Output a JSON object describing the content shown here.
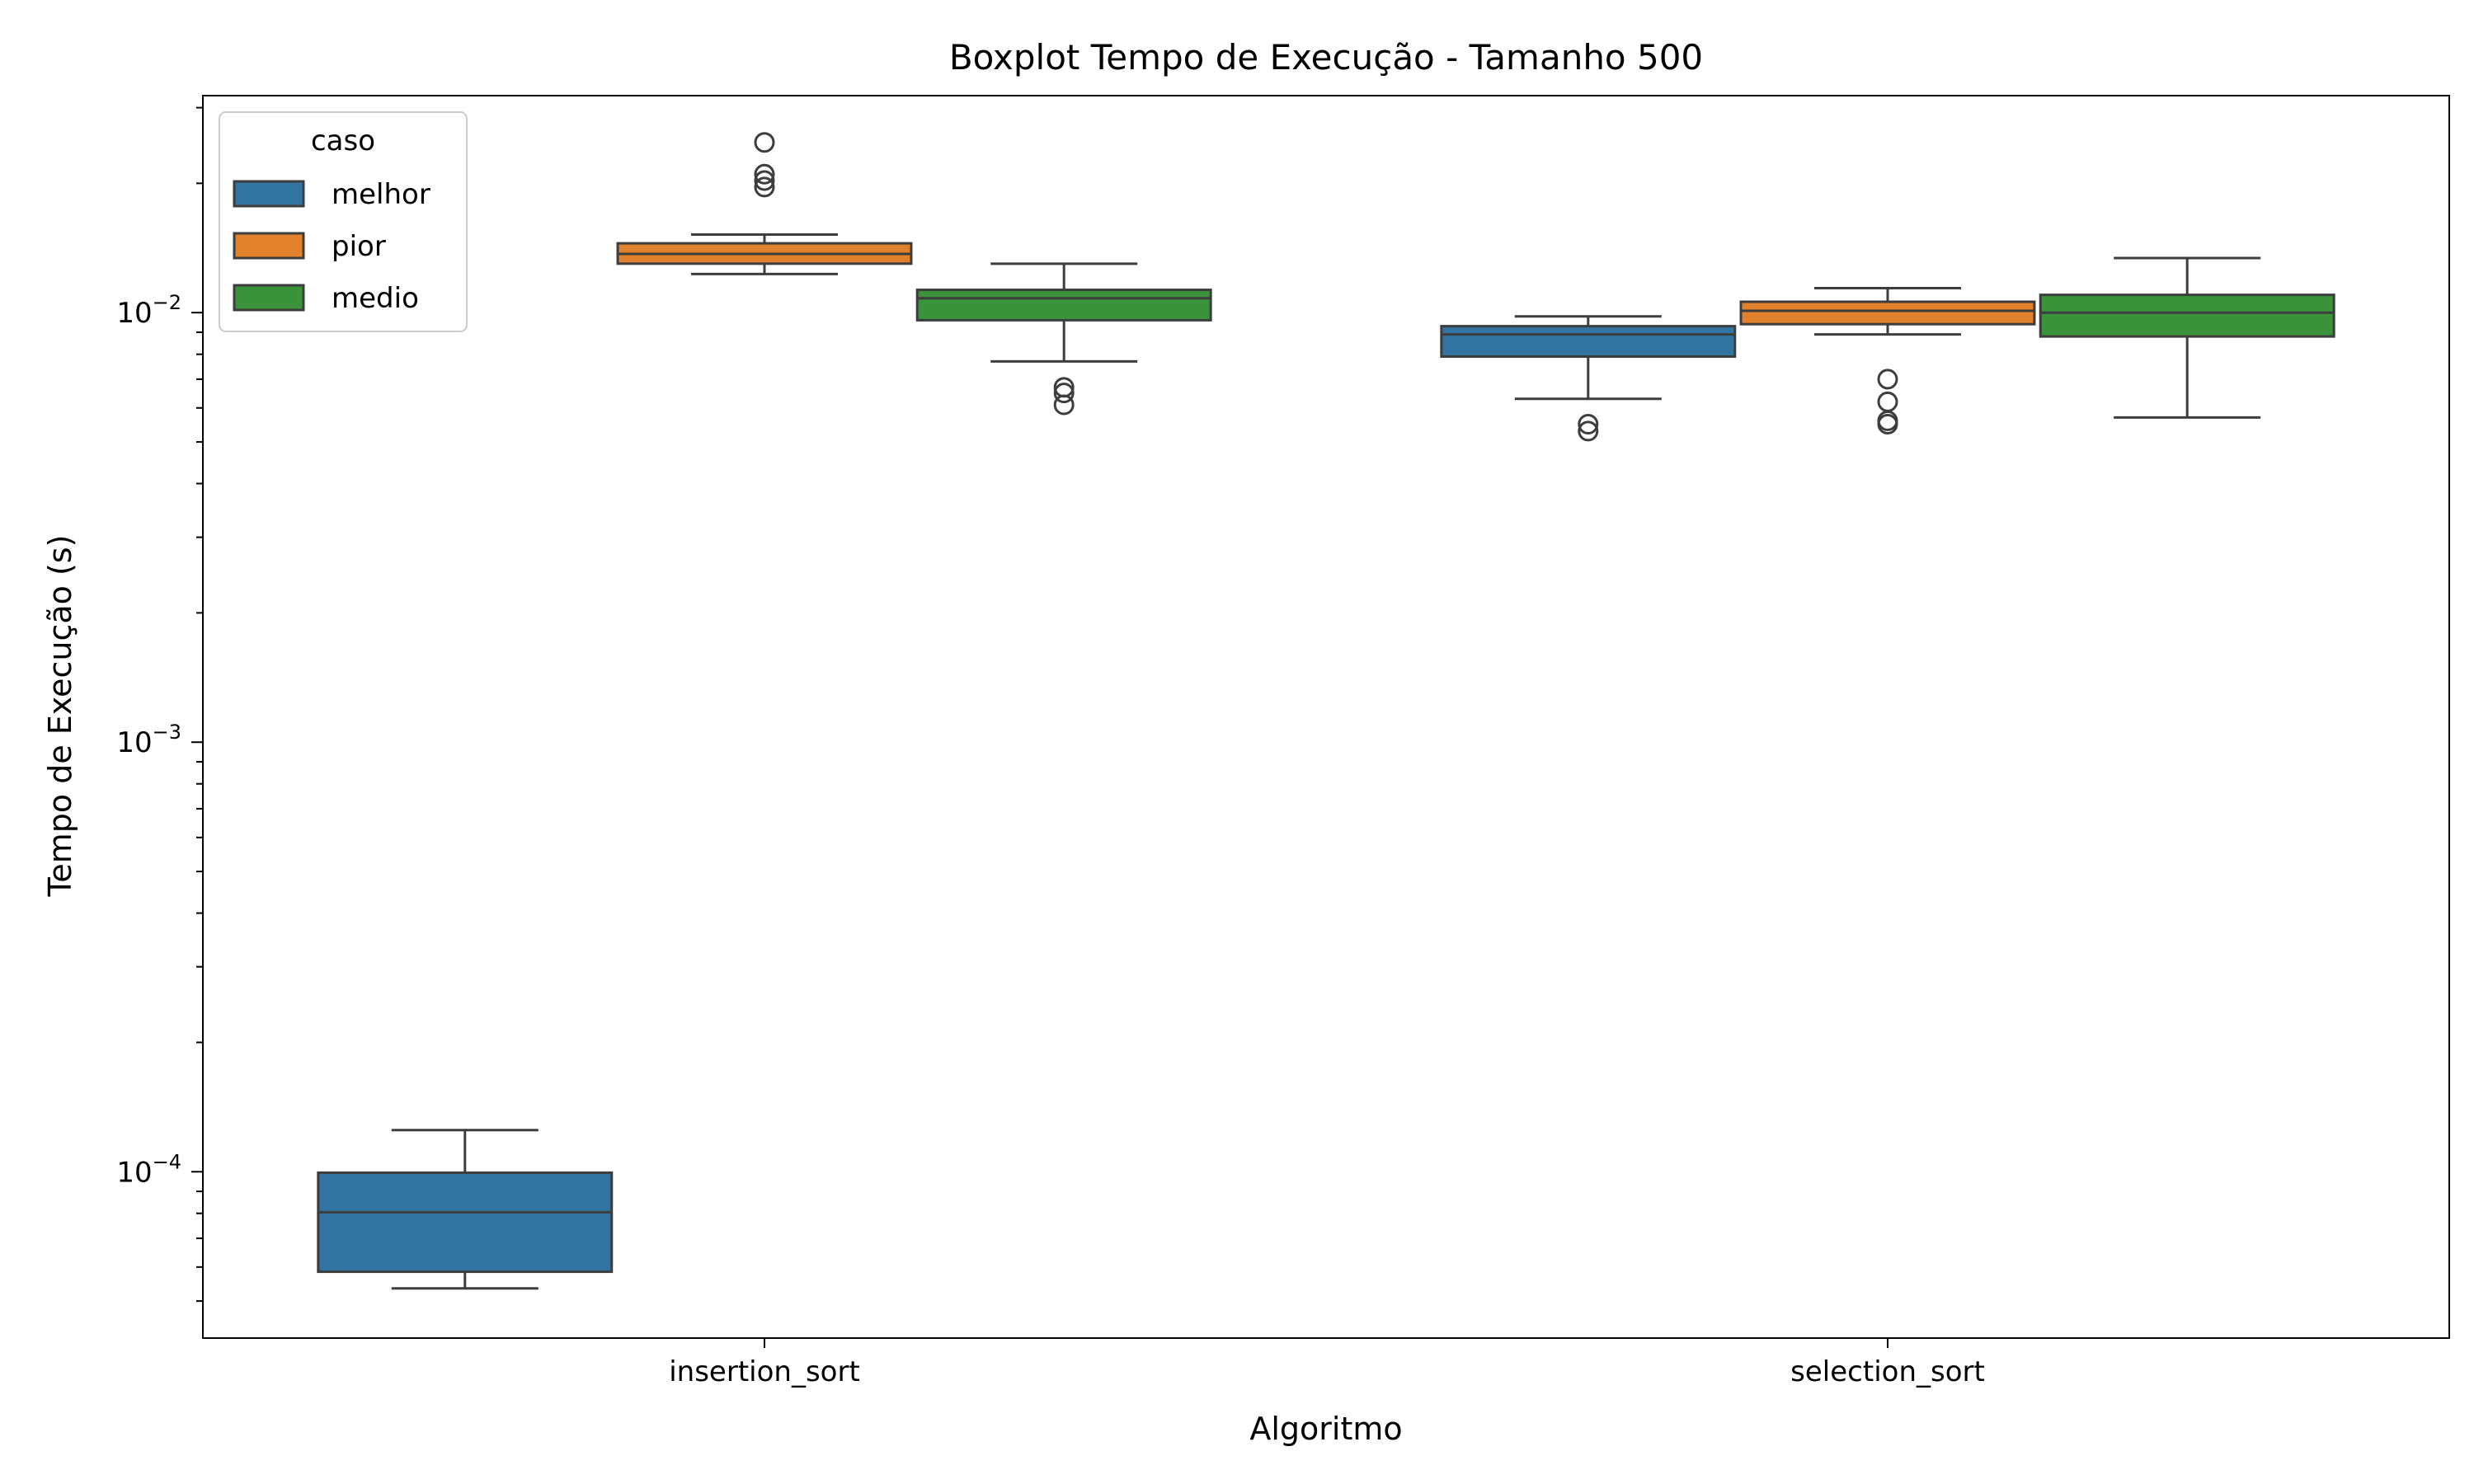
{
  "chart_data": {
    "type": "box",
    "title": "Boxplot Tempo de Execução - Tamanho 500",
    "xlabel": "Algoritmo",
    "ylabel": "Tempo de Execução (s)",
    "yscale": "log",
    "ylim": [
      4.1e-05,
      0.032
    ],
    "grid": false,
    "categories": [
      "insertion_sort",
      "selection_sort"
    ],
    "y_ticks": [
      {
        "value": 0.0001,
        "base": "10",
        "exp": "−4"
      },
      {
        "value": 0.001,
        "base": "10",
        "exp": "−3"
      },
      {
        "value": 0.01,
        "base": "10",
        "exp": "−2"
      }
    ],
    "legend": {
      "title": "caso",
      "placement": "upper-left"
    },
    "series": [
      {
        "name": "melhor",
        "color": "#3274a1",
        "boxes": [
          {
            "whislo": 5.35e-05,
            "q1": 5.85e-05,
            "med": 8.05e-05,
            "q3": 9.95e-05,
            "whishi": 0.000125,
            "fliers": []
          },
          {
            "whislo": 0.0063,
            "q1": 0.0079,
            "med": 0.0089,
            "q3": 0.0093,
            "whishi": 0.0098,
            "fliers": [
              0.0053,
              0.0055
            ]
          }
        ]
      },
      {
        "name": "pior",
        "color": "#e1812c",
        "boxes": [
          {
            "whislo": 0.0123,
            "q1": 0.013,
            "med": 0.0137,
            "q3": 0.0145,
            "whishi": 0.0152,
            "fliers": [
              0.0196,
              0.0203,
              0.021,
              0.0249
            ]
          },
          {
            "whislo": 0.0089,
            "q1": 0.0094,
            "med": 0.0101,
            "q3": 0.0106,
            "whishi": 0.0114,
            "fliers": [
              0.0055,
              0.0056,
              0.0062,
              0.007
            ]
          }
        ]
      },
      {
        "name": "medio",
        "color": "#3a923a",
        "boxes": [
          {
            "whislo": 0.0077,
            "q1": 0.0096,
            "med": 0.0108,
            "q3": 0.0113,
            "whishi": 0.013,
            "fliers": [
              0.0061,
              0.0065,
              0.0067
            ]
          },
          {
            "whislo": 0.0057,
            "q1": 0.0088,
            "med": 0.01,
            "q3": 0.011,
            "whishi": 0.0134,
            "fliers": []
          }
        ]
      }
    ]
  }
}
